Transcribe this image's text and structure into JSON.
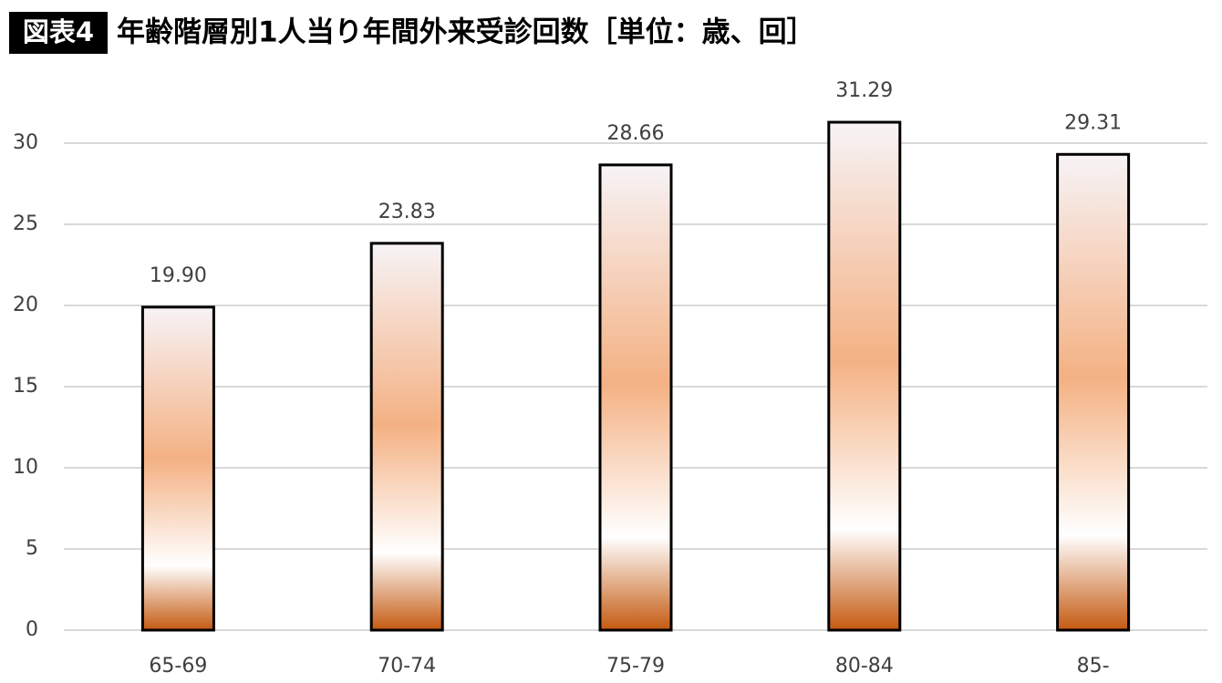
{
  "chart_data": {
    "type": "bar",
    "label": "図表4",
    "title": "年齢階層別1人当り年間外来受診回数［単位：歳、回］",
    "categories": [
      "65-69",
      "70-74",
      "75-79",
      "80-84",
      "85-"
    ],
    "values": [
      19.9,
      23.83,
      28.66,
      31.29,
      29.31
    ],
    "value_labels": [
      "19.90",
      "23.83",
      "28.66",
      "31.29",
      "29.31"
    ],
    "color": "#f4b183",
    "ylim": [
      0,
      35
    ],
    "yticks": [
      0,
      5,
      10,
      15,
      20,
      25,
      30
    ],
    "grid": true
  }
}
